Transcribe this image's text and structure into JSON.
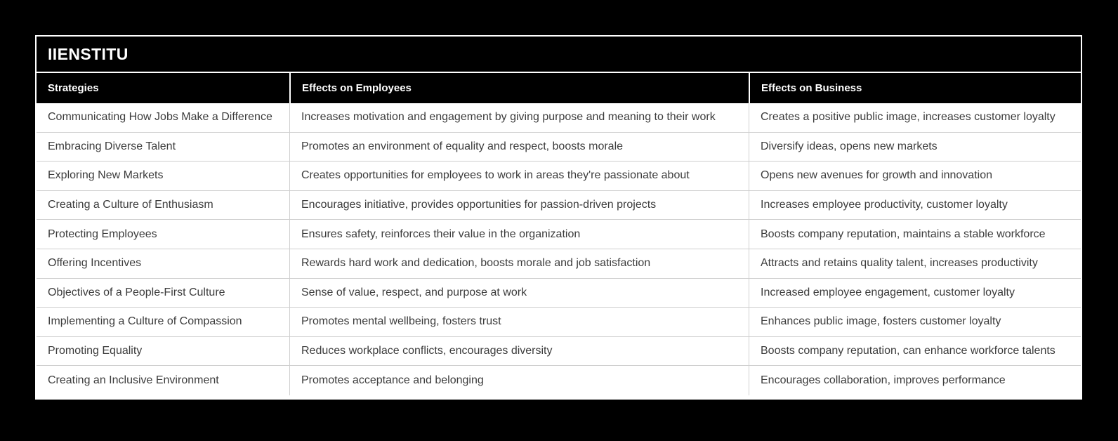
{
  "page": {
    "background_color": "#000000"
  },
  "table": {
    "title": "IIENSTITU",
    "columns": [
      {
        "label": "Strategies"
      },
      {
        "label": "Effects on Employees"
      },
      {
        "label": "Effects on Business"
      }
    ],
    "rows": [
      {
        "strategy": "Communicating How Jobs Make a Difference",
        "employees": "Increases motivation and engagement by giving purpose and meaning to their work",
        "business": "Creates a positive public image, increases customer loyalty"
      },
      {
        "strategy": "Embracing Diverse Talent",
        "employees": "Promotes an environment of equality and respect, boosts morale",
        "business": "Diversify ideas, opens new markets"
      },
      {
        "strategy": "Exploring New Markets",
        "employees": "Creates opportunities for employees to work in areas they're passionate about",
        "business": "Opens new avenues for growth and innovation"
      },
      {
        "strategy": "Creating a Culture of Enthusiasm",
        "employees": "Encourages initiative, provides opportunities for passion-driven projects",
        "business": "Increases employee productivity, customer loyalty"
      },
      {
        "strategy": "Protecting Employees",
        "employees": "Ensures safety, reinforces their value in the organization",
        "business": "Boosts company reputation, maintains a stable workforce"
      },
      {
        "strategy": "Offering Incentives",
        "employees": "Rewards hard work and dedication, boosts morale and job satisfaction",
        "business": "Attracts and retains quality talent, increases productivity"
      },
      {
        "strategy": "Objectives of a People-First Culture",
        "employees": "Sense of value, respect, and purpose at work",
        "business": "Increased employee engagement, customer loyalty"
      },
      {
        "strategy": "Implementing a Culture of Compassion",
        "employees": "Promotes mental wellbeing, fosters trust",
        "business": "Enhances public image, fosters customer loyalty"
      },
      {
        "strategy": "Promoting Equality",
        "employees": "Reduces workplace conflicts, encourages diversity",
        "business": "Boosts company reputation, can enhance workforce talents"
      },
      {
        "strategy": "Creating an Inclusive Environment",
        "employees": "Promotes acceptance and belonging",
        "business": "Encourages collaboration, improves performance"
      }
    ]
  },
  "colors": {
    "page_background": "#000000",
    "table_background": "#ffffff",
    "header_background": "#000000",
    "header_text": "#ffffff",
    "cell_text": "#3c3c3c",
    "gridline": "#cfcfcf",
    "border": "#ffffff"
  }
}
